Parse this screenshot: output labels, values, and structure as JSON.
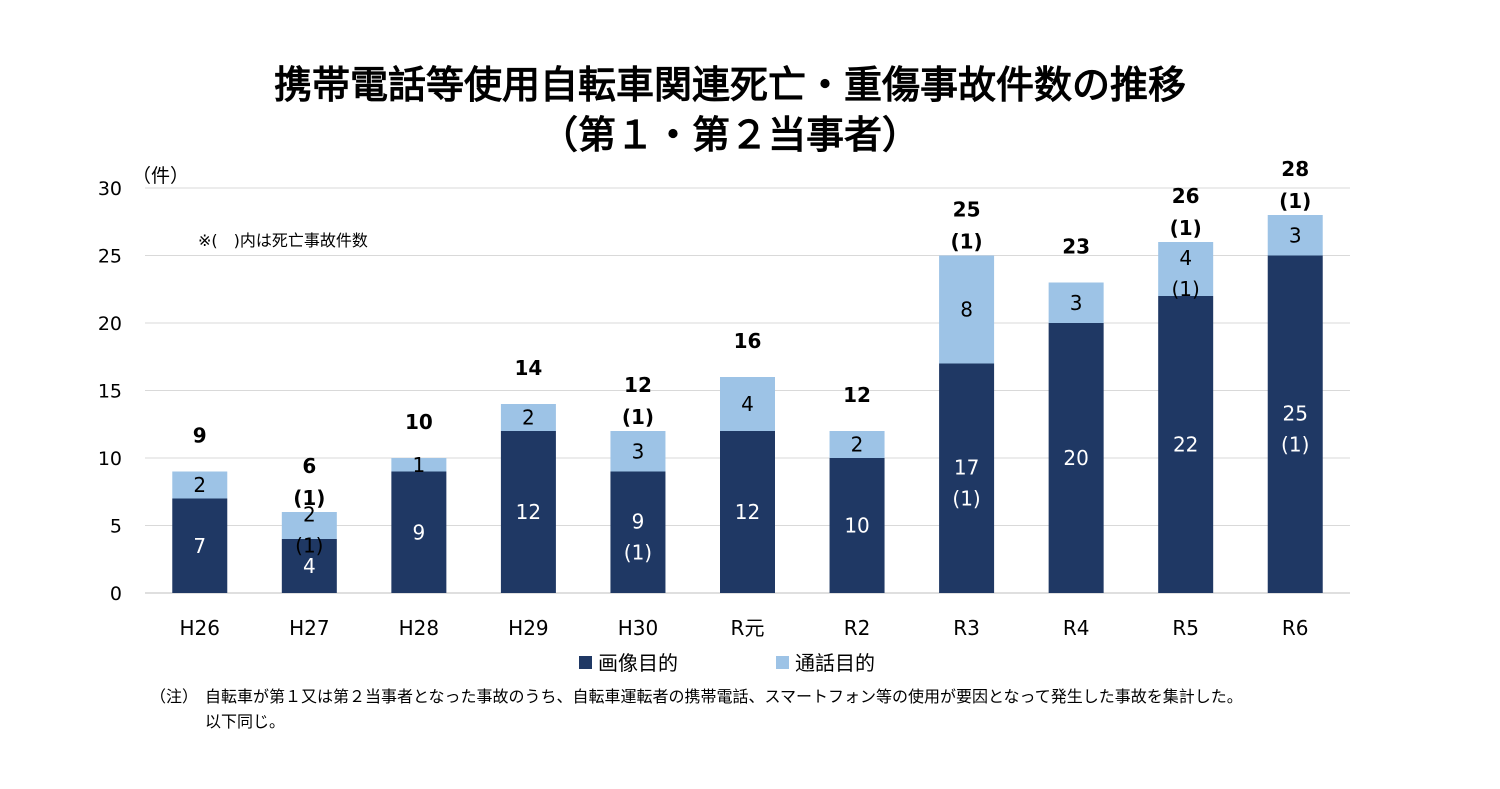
{
  "chart_data": {
    "type": "bar",
    "stacked": true,
    "title_line1": "携帯電話等使用自転車関連死亡・重傷事故件数の推移",
    "title_line2": "（第１・第２当事者）",
    "y_unit": "（件）",
    "annotation": "※(　)内は死亡事故件数",
    "ylim": [
      0,
      30
    ],
    "yticks": [
      0,
      5,
      10,
      15,
      20,
      25,
      30
    ],
    "grid": true,
    "legend_position": "bottom",
    "categories": [
      "H26",
      "H27",
      "H28",
      "H29",
      "H30",
      "R元",
      "R2",
      "R3",
      "R4",
      "R5",
      "R6"
    ],
    "series": [
      {
        "name": "画像目的",
        "color": "#1f3864",
        "label_color": "#ffffff",
        "values": [
          7,
          4,
          9,
          12,
          9,
          12,
          10,
          17,
          20,
          22,
          25
        ],
        "deaths": [
          "",
          "",
          "",
          "",
          "(1)",
          "",
          "",
          "(1)",
          "",
          "",
          "(1)"
        ]
      },
      {
        "name": "通話目的",
        "color": "#9dc3e6",
        "label_color": "#000000",
        "values": [
          2,
          2,
          1,
          2,
          3,
          4,
          2,
          8,
          3,
          4,
          3
        ],
        "deaths": [
          "",
          "(1)",
          "",
          "",
          "",
          "",
          "",
          "",
          "",
          "(1)",
          ""
        ]
      }
    ],
    "totals": [
      9,
      6,
      10,
      14,
      12,
      16,
      12,
      25,
      23,
      26,
      28
    ],
    "total_deaths": [
      "",
      "(1)",
      "",
      "",
      "(1)",
      "",
      "",
      "(1)",
      "",
      "(1)",
      "(1)"
    ]
  },
  "footnote": {
    "prefix": "（注）",
    "line1": "自転車が第１又は第２当事者となった事故のうち、自転車運転者の携帯電話、スマートフォン等の使用が要因となって発生した事故を集計した。",
    "line2": "以下同じ。"
  }
}
